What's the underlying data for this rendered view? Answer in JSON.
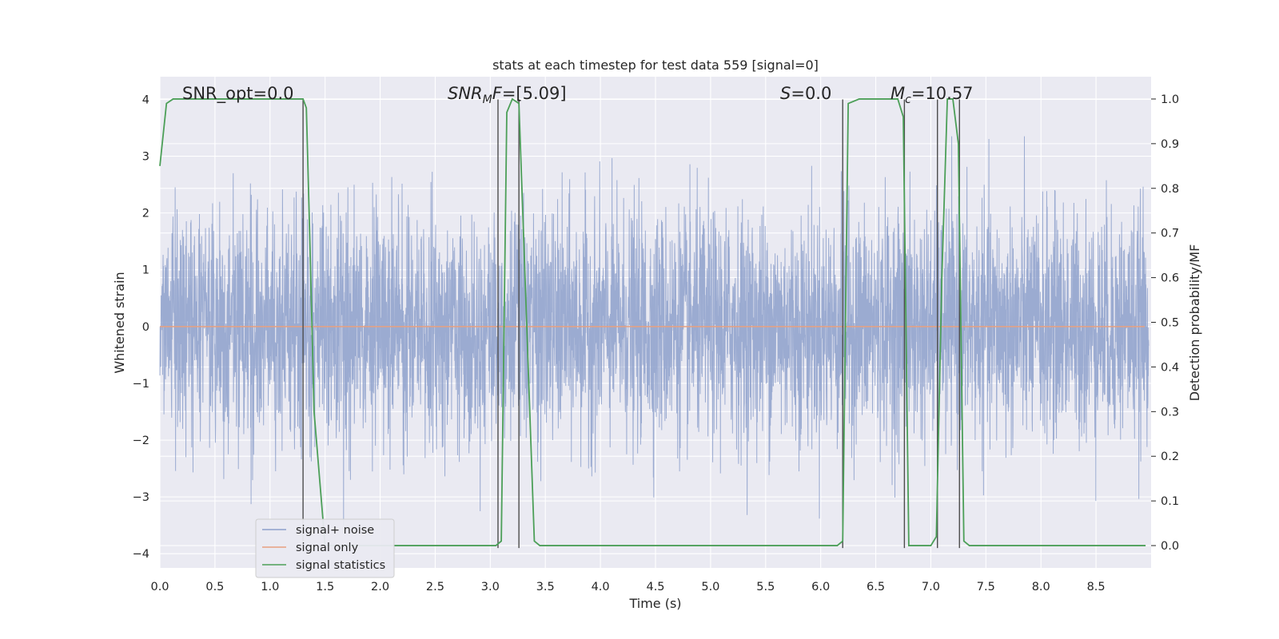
{
  "chart_data": {
    "type": "line",
    "title": "stats at each timestep for test data 559 [signal=0]",
    "xlabel": "Time (s)",
    "ylabel_left": "Whitened strain",
    "ylabel_right": "Detection probability/MF",
    "xlim": [
      0.0,
      9.0
    ],
    "ylim_left": [
      -4.25,
      4.4
    ],
    "ylim_right": [
      -0.05,
      1.05
    ],
    "x_ticks": [
      0.0,
      0.5,
      1.0,
      1.5,
      2.0,
      2.5,
      3.0,
      3.5,
      4.0,
      4.5,
      5.0,
      5.5,
      6.0,
      6.5,
      7.0,
      7.5,
      8.0,
      8.5
    ],
    "x_tick_labels": [
      "0.0",
      "0.5",
      "1.0",
      "1.5",
      "2.0",
      "2.5",
      "3.0",
      "3.5",
      "4.0",
      "4.5",
      "5.0",
      "5.5",
      "6.0",
      "6.5",
      "7.0",
      "7.5",
      "8.0",
      "8.5"
    ],
    "y_left_ticks": [
      -4,
      -3,
      -2,
      -1,
      0,
      1,
      2,
      3,
      4
    ],
    "y_left_tick_labels": [
      "−4",
      "−3",
      "−2",
      "−1",
      "0",
      "1",
      "2",
      "3",
      "4"
    ],
    "y_right_ticks": [
      0.0,
      0.1,
      0.2,
      0.3,
      0.4,
      0.5,
      0.6,
      0.7,
      0.8,
      0.9,
      1.0
    ],
    "y_right_tick_labels": [
      "0.0",
      "0.1",
      "0.2",
      "0.3",
      "0.4",
      "0.5",
      "0.6",
      "0.7",
      "0.8",
      "0.9",
      "1.0"
    ],
    "grid": true,
    "legend_position": "lower-left",
    "annotations": {
      "snr_opt": "SNR_opt=0.0",
      "snr_mf_sym": "SNR",
      "snr_mf_sub": "M",
      "snr_mf_sym2": "F",
      "snr_mf_val": "=[5.09]",
      "s_sym": "S",
      "s_val": "=0.0",
      "mc_sym": "M",
      "mc_sub": "c",
      "mc_val": "=10.57"
    },
    "series": [
      {
        "name": "signal+ noise",
        "color": "#8da0cb",
        "kind": "noise",
        "sample_rate_hz": 512,
        "envelope_std": 1.0,
        "peak_range": [
          -3.8,
          3.35
        ]
      },
      {
        "name": "signal only",
        "color": "#e8a07f",
        "x": [
          0.0,
          9.0
        ],
        "y": [
          0.0,
          0.0
        ]
      },
      {
        "name": "signal statistics",
        "color": "#4c9f58",
        "axis": "right",
        "x": [
          0.0,
          0.06,
          0.12,
          1.3,
          1.33,
          1.36,
          1.4,
          1.5,
          3.05,
          3.1,
          3.15,
          3.2,
          3.26,
          3.33,
          3.4,
          3.45,
          6.15,
          6.2,
          6.25,
          6.35,
          6.7,
          6.75,
          6.8,
          7.0,
          7.05,
          7.1,
          7.15,
          7.2,
          7.25,
          7.3,
          7.35,
          7.45,
          8.95
        ],
        "y": [
          0.85,
          0.99,
          1.0,
          1.0,
          0.98,
          0.7,
          0.3,
          0.0,
          0.0,
          0.01,
          0.97,
          1.0,
          0.99,
          0.5,
          0.01,
          0.0,
          0.0,
          0.01,
          0.99,
          1.0,
          1.0,
          0.96,
          0.0,
          0.0,
          0.02,
          0.6,
          1.0,
          1.0,
          0.9,
          0.01,
          0.0,
          0.0,
          0.0
        ]
      }
    ],
    "vertical_lines_x": [
      1.3,
      3.07,
      3.26,
      6.2,
      6.76,
      7.06,
      7.26
    ],
    "colors": {
      "plot_bg": "#eaeaf2",
      "grid": "#ffffff",
      "vline": "#4d4d4d",
      "text": "#262626"
    }
  }
}
